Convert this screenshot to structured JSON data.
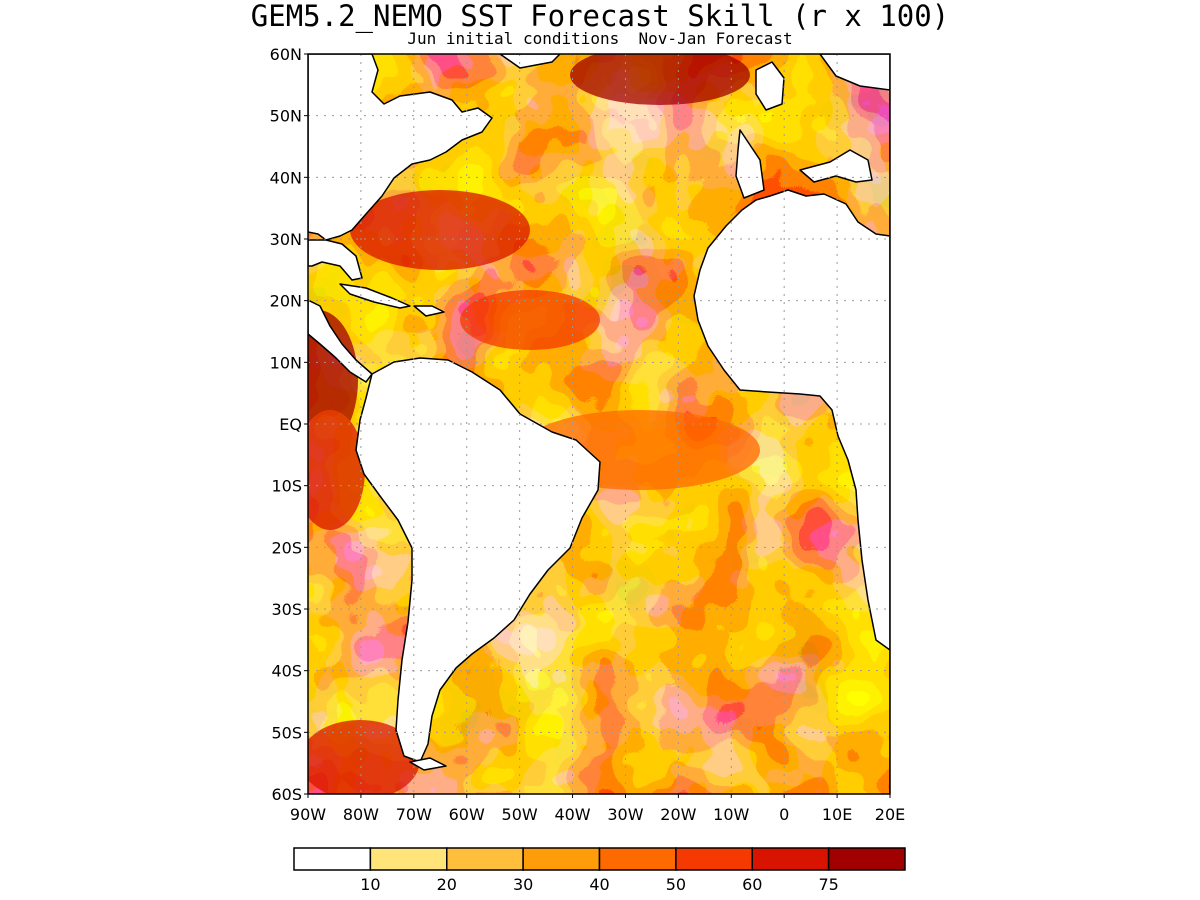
{
  "title": "GEM5.2_NEMO SST Forecast Skill (r x 100)",
  "subtitle": "Jun initial conditions  Nov-Jan Forecast",
  "map": {
    "lon_range": [
      -90,
      20
    ],
    "lat_range": [
      -60,
      60
    ],
    "lat_ticks": [
      {
        "lat": 60,
        "label": "60N"
      },
      {
        "lat": 50,
        "label": "50N"
      },
      {
        "lat": 40,
        "label": "40N"
      },
      {
        "lat": 30,
        "label": "30N"
      },
      {
        "lat": 20,
        "label": "20N"
      },
      {
        "lat": 10,
        "label": "10N"
      },
      {
        "lat": 0,
        "label": "EQ"
      },
      {
        "lat": -10,
        "label": "10S"
      },
      {
        "lat": -20,
        "label": "20S"
      },
      {
        "lat": -30,
        "label": "30S"
      },
      {
        "lat": -40,
        "label": "40S"
      },
      {
        "lat": -50,
        "label": "50S"
      },
      {
        "lat": -60,
        "label": "60S"
      }
    ],
    "lon_ticks": [
      {
        "lon": -90,
        "label": "90W"
      },
      {
        "lon": -80,
        "label": "80W"
      },
      {
        "lon": -70,
        "label": "70W"
      },
      {
        "lon": -60,
        "label": "60W"
      },
      {
        "lon": -50,
        "label": "50W"
      },
      {
        "lon": -40,
        "label": "40W"
      },
      {
        "lon": -30,
        "label": "30W"
      },
      {
        "lon": -20,
        "label": "20W"
      },
      {
        "lon": -10,
        "label": "10W"
      },
      {
        "lon": 0,
        "label": "0"
      },
      {
        "lon": 10,
        "label": "10E"
      },
      {
        "lon": 20,
        "label": "20E"
      }
    ],
    "gridlines": true
  },
  "colorbar": {
    "bins": [
      {
        "color": "#ffffff",
        "label": ""
      },
      {
        "color": "#ffe47a",
        "label": "10"
      },
      {
        "color": "#ffbe3c",
        "label": "20"
      },
      {
        "color": "#ff9c0a",
        "label": "30"
      },
      {
        "color": "#ff6a00",
        "label": "40"
      },
      {
        "color": "#f43a00",
        "label": "50"
      },
      {
        "color": "#d81400",
        "label": "60"
      },
      {
        "color": "#a00000",
        "label": "75"
      }
    ]
  }
}
